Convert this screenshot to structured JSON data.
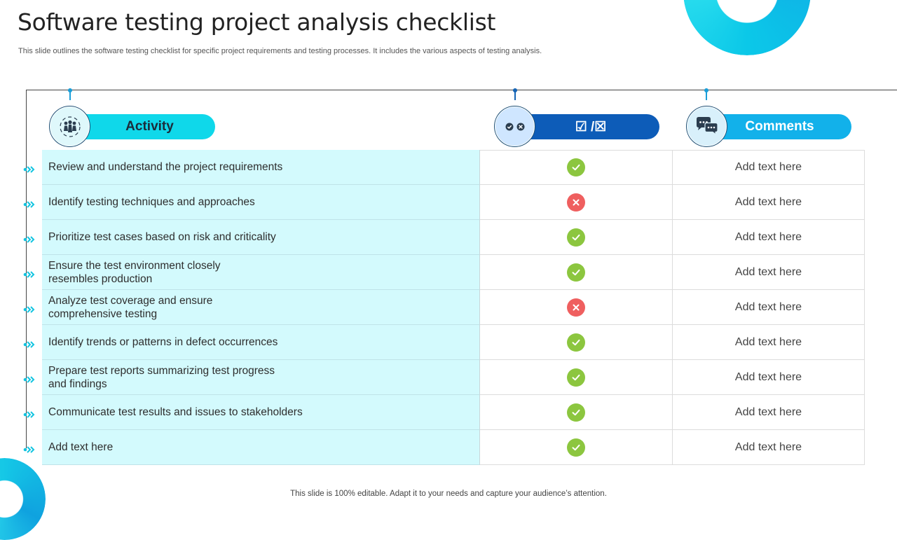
{
  "header": {
    "title": "Software testing project analysis checklist",
    "subtitle": "This slide outlines the software testing checklist for specific project requirements and testing processes. It includes the various aspects of testing analysis."
  },
  "columns": {
    "activity": {
      "label": "Activity",
      "icon": "team-people-icon"
    },
    "status": {
      "label": "☑ /☒",
      "icon": "check-cross-icon"
    },
    "comments": {
      "label": "Comments",
      "icon": "chat-bubbles-icon"
    }
  },
  "rows": [
    {
      "activity": "Review and understand the project requirements",
      "status": "check",
      "comment": "Add text here"
    },
    {
      "activity": "Identify testing techniques and approaches",
      "status": "cross",
      "comment": "Add text here"
    },
    {
      "activity": "Prioritize test cases based on risk and criticality",
      "status": "check",
      "comment": "Add text here"
    },
    {
      "activity": "Ensure the test environment closely\nresembles production",
      "status": "check",
      "comment": "Add text here"
    },
    {
      "activity": "Analyze test coverage and ensure\ncomprehensive testing",
      "status": "cross",
      "comment": "Add text here"
    },
    {
      "activity": "Identify trends or patterns in defect occurrences",
      "status": "check",
      "comment": "Add text here"
    },
    {
      "activity": "Prepare test reports summarizing test progress\nand findings",
      "status": "check",
      "comment": "Add text here"
    },
    {
      "activity": "Communicate test results and issues to stakeholders",
      "status": "check",
      "comment": "Add text here"
    },
    {
      "activity": "Add text here",
      "status": "check",
      "comment": "Add text here"
    }
  ],
  "footer": {
    "text": "This slide is 100% editable. Adapt it to your needs and capture your audience’s attention."
  },
  "colors": {
    "check": "#8cc63f",
    "cross": "#ef5f5f",
    "activity_pill": "#0fd8ea",
    "status_pill": "#0d5cb8",
    "comments_pill": "#12b1ea",
    "activity_cell": "#d3fafd"
  }
}
